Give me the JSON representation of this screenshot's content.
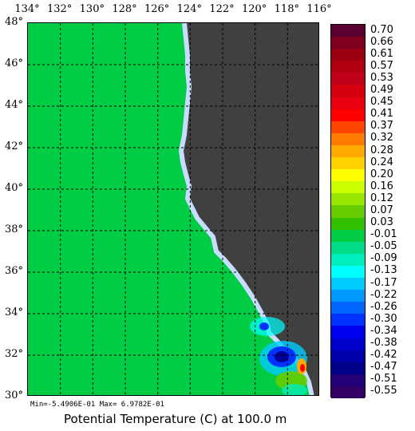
{
  "map": {
    "lon_labels": [
      "134°",
      "132°",
      "130°",
      "128°",
      "126°",
      "124°",
      "122°",
      "120°",
      "118°",
      "116°"
    ],
    "lat_labels": [
      "48°",
      "46°",
      "44°",
      "42°",
      "40°",
      "38°",
      "36°",
      "34°",
      "32°",
      "30°"
    ],
    "ocean_color": "#00cc44",
    "land_color": "#404040",
    "coast_color": "#c8dcff",
    "grid": true
  },
  "colorbar": {
    "levels": [
      "0.70",
      "0.66",
      "0.61",
      "0.57",
      "0.53",
      "0.49",
      "0.45",
      "0.41",
      "0.37",
      "0.32",
      "0.28",
      "0.24",
      "0.20",
      "0.16",
      "0.12",
      "0.07",
      "0.03",
      "-0.01",
      "-0.05",
      "-0.09",
      "-0.13",
      "-0.17",
      "-0.22",
      "-0.26",
      "-0.30",
      "-0.34",
      "-0.38",
      "-0.42",
      "-0.47",
      "-0.51",
      "-0.55"
    ],
    "colors": [
      "#5a0030",
      "#800020",
      "#9a0010",
      "#b00010",
      "#c00018",
      "#d40010",
      "#e80010",
      "#ff0000",
      "#ff4400",
      "#ff7a00",
      "#ffaa00",
      "#ffd200",
      "#ffff00",
      "#ccff00",
      "#99e600",
      "#66cc00",
      "#33c000",
      "#00cc44",
      "#00dd88",
      "#00eebb",
      "#00ffff",
      "#00ccff",
      "#0099ff",
      "#0066ff",
      "#0033ff",
      "#0000ee",
      "#0000cc",
      "#0000aa",
      "#000088",
      "#220077",
      "#330066"
    ]
  },
  "stats": "Min=-5.4906E-01  Max= 6.9782E-01",
  "caption": "Potential Temperature (C) at 100.0 m"
}
